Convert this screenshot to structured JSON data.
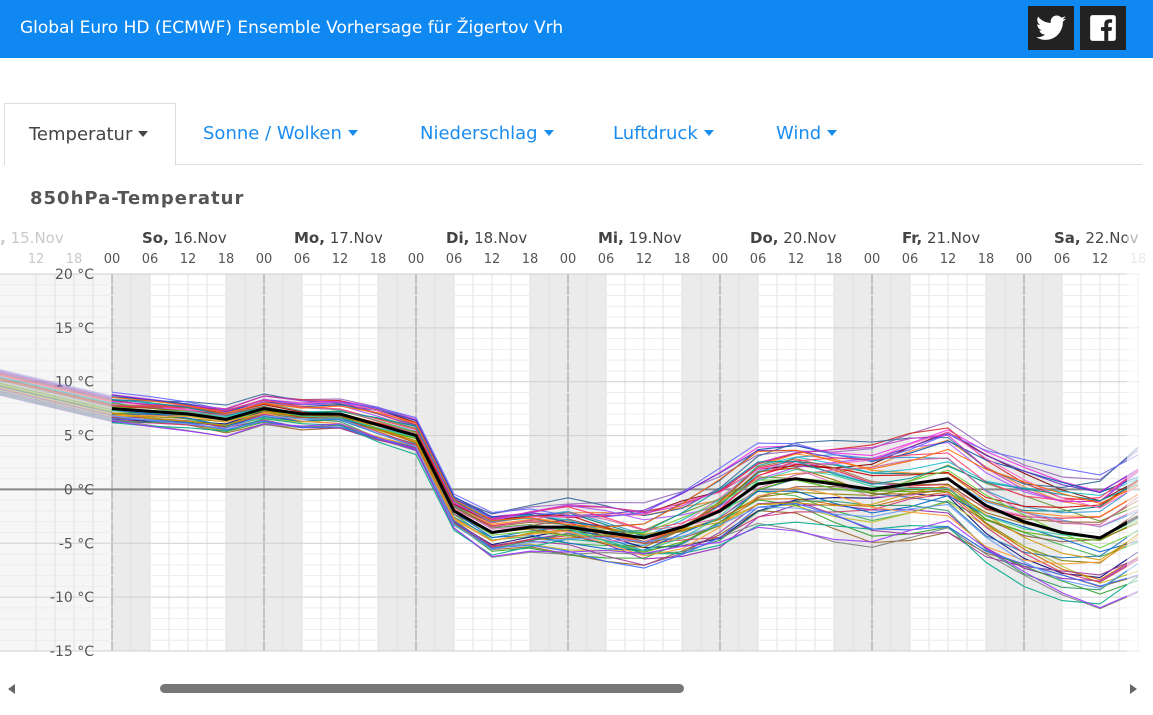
{
  "header": {
    "title": "Global Euro HD (ECMWF) Ensemble Vorhersage für Žigertov Vrh",
    "twitter_icon": "twitter-icon",
    "facebook_icon": "facebook-icon",
    "bg_color": "#0f88f2"
  },
  "tabs": [
    {
      "label": "Temperatur",
      "active": true
    },
    {
      "label": "Sonne / Wolken",
      "active": false
    },
    {
      "label": "Niederschlag",
      "active": false
    },
    {
      "label": "Luftdruck",
      "active": false
    },
    {
      "label": "Wind",
      "active": false
    }
  ],
  "chart_title": "850hPa-Temperatur",
  "chart_data": {
    "type": "line",
    "unit": "°C",
    "ylim": [
      -15,
      20
    ],
    "yticks": [
      "20 °C",
      "15 °C",
      "10 °C",
      "5 °C",
      "0 °C",
      "-5 °C",
      "-10 °C",
      "-15 °C"
    ],
    "y_values": [
      20,
      15,
      10,
      5,
      0,
      -5,
      -10,
      -15
    ],
    "day_labels": [
      {
        "abbr": "a,",
        "rest": " 15.Nov",
        "faded": true
      },
      {
        "abbr": "So,",
        "rest": " 16.Nov"
      },
      {
        "abbr": "Mo,",
        "rest": " 17.Nov"
      },
      {
        "abbr": "Di,",
        "rest": " 18.Nov"
      },
      {
        "abbr": "Mi,",
        "rest": " 19.Nov"
      },
      {
        "abbr": "Do,",
        "rest": " 20.Nov"
      },
      {
        "abbr": "Fr,",
        "rest": " 21.Nov"
      },
      {
        "abbr": "Sa,",
        "rest": " 22.Nov"
      }
    ],
    "hour_labels": [
      "12",
      "18",
      "00",
      "06",
      "12",
      "18",
      "00",
      "06",
      "12",
      "18",
      "00",
      "06",
      "12",
      "18",
      "00",
      "06",
      "12",
      "18",
      "00",
      "06",
      "12",
      "18",
      "00",
      "06",
      "12",
      "18",
      "00",
      "06",
      "12",
      "18"
    ],
    "time_range_hours": [
      -12,
      162
    ],
    "grid": true,
    "zero_line": true,
    "mean_line_color": "#000000",
    "mean": {
      "hours": [
        0,
        12,
        18,
        24,
        30,
        36,
        42,
        48,
        54,
        60,
        66,
        72,
        78,
        84,
        90,
        96,
        102,
        108,
        114,
        120,
        126,
        132,
        138,
        144,
        150,
        156,
        162
      ],
      "values": [
        7.5,
        7.0,
        6.5,
        7.5,
        7.0,
        7.0,
        6.0,
        5.0,
        -2.0,
        -4.0,
        -3.5,
        -3.5,
        -4.0,
        -4.5,
        -3.5,
        -2.0,
        0.5,
        1.0,
        0.5,
        0.0,
        0.5,
        1.0,
        -1.5,
        -3.0,
        -4.0,
        -4.5,
        -2.5
      ]
    },
    "series_colors": [
      "#e6194b",
      "#3cb44b",
      "#f58231",
      "#911eb4",
      "#46a0f0",
      "#f032e6",
      "#808000",
      "#008080",
      "#9a6324",
      "#800000",
      "#000075",
      "#ff7f0e",
      "#2ca02c",
      "#9467bd",
      "#8c564b",
      "#17becf",
      "#bcbd22",
      "#d62728",
      "#1f77b4",
      "#e377c2",
      "#7f7f7f",
      "#aa55ff",
      "#55aa00",
      "#0055aa",
      "#cc6600",
      "#336699",
      "#993399",
      "#669933",
      "#cc3366",
      "#3399cc",
      "#996600",
      "#6633cc",
      "#00aa88",
      "#cc0000",
      "#0066cc",
      "#ff66cc",
      "#339966",
      "#996633",
      "#6666ff",
      "#cc9900",
      "#ff3366",
      "#3366ff",
      "#66cc33",
      "#cc33cc",
      "#ff9933",
      "#009999",
      "#9933ff",
      "#cc6699",
      "#33cc99",
      "#ff6600",
      "#6699ff"
    ],
    "series_offsets": [
      0.6,
      -1.2,
      1.8,
      -2.4,
      0.3,
      2.9,
      -0.8,
      1.1,
      -3.1,
      2.2,
      -1.7,
      0.9,
      -2.8,
      3.4,
      -0.4,
      1.5,
      -2.1,
      2.6,
      -1.0,
      0.2,
      -3.5,
      1.9,
      -0.6,
      2.4,
      -1.4,
      3.0,
      -2.6,
      0.7,
      -1.9,
      1.3,
      -0.2,
      2.8,
      -3.2,
      1.0,
      -1.1,
      2.1,
      -2.3,
      0.5,
      3.2,
      -0.9,
      1.7,
      -2.9,
      0.0,
      2.5,
      -1.6,
      1.4,
      -3.4,
      0.8,
      -0.3,
      2.0,
      -2.0
    ]
  },
  "scrollbar": {
    "left_arrow": "scroll-left-arrow",
    "right_arrow": "scroll-right-arrow"
  }
}
